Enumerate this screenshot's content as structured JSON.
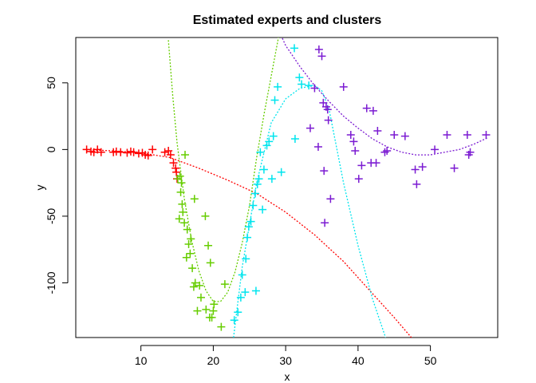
{
  "chart_data": {
    "type": "scatter",
    "title": "Estimated experts and clusters",
    "xlabel": "x",
    "ylabel": "y",
    "xlim": [
      1.0,
      59.3
    ],
    "ylim": [
      -141,
      84
    ],
    "xticks": [
      10,
      20,
      30,
      40,
      50
    ],
    "yticks": [
      -100,
      -50,
      0,
      50
    ],
    "grid": false,
    "series": [
      {
        "color": "#ff0000",
        "line": {
          "x": [
            2,
            6,
            10,
            14,
            18,
            22,
            26,
            30,
            34,
            38,
            42,
            45,
            48
          ],
          "y": [
            0,
            -1,
            -2.5,
            -6,
            -14,
            -23,
            -33,
            -47,
            -64,
            -84,
            -108,
            -126,
            -145
          ]
        },
        "points": {
          "x": [
            2.5,
            3.1,
            3.5,
            4.0,
            4.5,
            6.2,
            6.6,
            7.2,
            8.1,
            8.6,
            9.0,
            9.7,
            10.2,
            10.6,
            11.0,
            11.6,
            13.3,
            13.8,
            14.1,
            14.5,
            14.8,
            14.9,
            15.0
          ],
          "y": [
            0,
            -1.5,
            -2,
            0,
            -2,
            -2,
            -1.5,
            -2,
            -2.5,
            -1.5,
            -2,
            -3,
            -2.5,
            -4,
            -4.5,
            0,
            -2,
            -1,
            -4,
            -10,
            -14,
            -17,
            -22
          ]
        }
      },
      {
        "color": "#66cd00",
        "line": {
          "x": [
            13.8,
            14.4,
            15,
            16,
            17,
            18,
            19,
            20,
            21,
            22,
            23,
            24,
            25,
            26,
            27,
            28,
            29
          ],
          "y": [
            82,
            40,
            5,
            -37,
            -68,
            -91,
            -106,
            -114,
            -114,
            -107,
            -92,
            -70,
            -42,
            -6,
            26,
            55,
            84
          ]
        },
        "points": {
          "x": [
            15.1,
            15.4,
            15.6,
            15.5,
            15.7,
            16.1,
            15.3,
            15.8,
            16.4,
            16.6,
            16.8,
            17.1,
            17.5,
            17.8,
            18.3,
            18.9,
            19.3,
            19.6,
            20.0,
            20.1,
            19.8,
            16.3,
            16.0,
            16.9,
            17.4,
            17.3,
            18.1,
            19.0,
            19.5,
            21.1,
            21.6
          ],
          "y": [
            -22,
            -20,
            -25,
            -32,
            -41,
            -4,
            -52,
            -47,
            -60,
            -71,
            -78,
            -89,
            -100,
            -121,
            -111,
            -50,
            -72,
            -85,
            -121,
            -116,
            -126,
            -81,
            -55,
            -67,
            -37,
            -103,
            -102,
            -120,
            -126,
            -133,
            -101
          ]
        }
      },
      {
        "color": "#00e5ee",
        "line": {
          "x": [
            22.8,
            24,
            26,
            28,
            30,
            32,
            34,
            35,
            36,
            38,
            40,
            42,
            43.8
          ],
          "y": [
            -141,
            -88,
            -25,
            20,
            38,
            46,
            48,
            44,
            30,
            -25,
            -72,
            -112,
            -141
          ]
        },
        "points": {
          "x": [
            22.9,
            23.8,
            24.0,
            24.5,
            24.7,
            24.9,
            25.2,
            25.5,
            25.8,
            26.1,
            26.3,
            26.5,
            27.0,
            27.4,
            27.7,
            28.1,
            28.3,
            28.5,
            28.9,
            29.4,
            31.3,
            31.2,
            31.9,
            32.2,
            33.2,
            23.4,
            24.4,
            25.9,
            26.8
          ],
          "y": [
            -128,
            -111,
            -94,
            -82,
            -66,
            -58,
            -54,
            -42,
            -33,
            -26,
            -22,
            -2,
            -15,
            3,
            6,
            -22,
            10,
            37,
            47,
            -17,
            8,
            76,
            54,
            49,
            48,
            -122,
            -107,
            -106,
            -45
          ]
        }
      },
      {
        "color": "#7b1bd2",
        "line": {
          "x": [
            29,
            30,
            32,
            34,
            36,
            38,
            40,
            42,
            44,
            46,
            48,
            50,
            52,
            54,
            56,
            58
          ],
          "y": [
            90,
            78,
            62,
            48,
            36,
            25,
            16,
            8,
            2,
            -2,
            -4,
            -4,
            -2,
            0,
            4,
            9
          ]
        },
        "points": {
          "x": [
            34.6,
            35.0,
            34.0,
            35.2,
            35.6,
            35.9,
            34.5,
            35.3,
            35.4,
            36.2,
            33.4,
            35.8,
            38.0,
            39.0,
            39.4,
            39.6,
            40.1,
            40.5,
            41.2,
            41.8,
            42.1,
            42.5,
            42.7,
            43.7,
            44.0,
            45.0,
            46.5,
            47.9,
            48.1,
            48.9,
            50.6,
            52.3,
            53.3,
            55.1,
            55.3,
            55.5,
            57.7
          ],
          "y": [
            75,
            70,
            46,
            35,
            32,
            22,
            2,
            -16,
            -55,
            -37,
            16,
            30,
            47,
            11,
            6,
            -1,
            -22,
            -12,
            31,
            -10,
            29,
            -10,
            14,
            -2,
            -1,
            11,
            10,
            -15,
            -26,
            -13,
            0,
            11,
            -14,
            11,
            -4,
            -2,
            11
          ]
        }
      }
    ]
  }
}
